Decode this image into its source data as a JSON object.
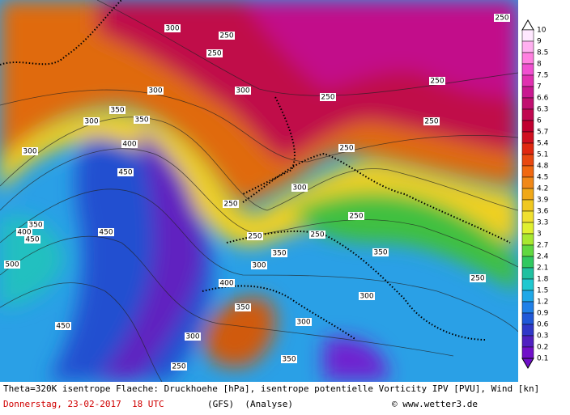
{
  "colorbar": {
    "labels": [
      "10",
      "9",
      "8.5",
      "8",
      "7.5",
      "7",
      "6.6",
      "6.3",
      "6",
      "5.7",
      "5.4",
      "5.1",
      "4.8",
      "4.5",
      "4.2",
      "3.9",
      "3.6",
      "3.3",
      "3",
      "2.7",
      "2.4",
      "2.1",
      "1.8",
      "1.5",
      "1.2",
      "0.9",
      "0.6",
      "0.3",
      "0.2",
      "0.1"
    ]
  },
  "map": {
    "contour_labels": [
      "300",
      "250",
      "250",
      "300",
      "350",
      "350",
      "300",
      "300",
      "400",
      "450",
      "350",
      "400",
      "450",
      "450",
      "500",
      "450",
      "250",
      "250",
      "300",
      "250",
      "250",
      "250",
      "250",
      "300",
      "250",
      "300",
      "350",
      "350",
      "300",
      "400",
      "350",
      "250",
      "250",
      "300",
      "300",
      "250",
      "350",
      "250"
    ]
  },
  "footer": {
    "description": "Theta=320K isentrope Flaeche: Druckhoehe [hPa], isentrope potentielle Vorticity IPV [PVU], Wind [kn]",
    "date": "Donnerstag, 23-02-2017  18 UTC",
    "model": "(GFS)  (Analyse)",
    "credit": "© www.wetter3.de"
  }
}
